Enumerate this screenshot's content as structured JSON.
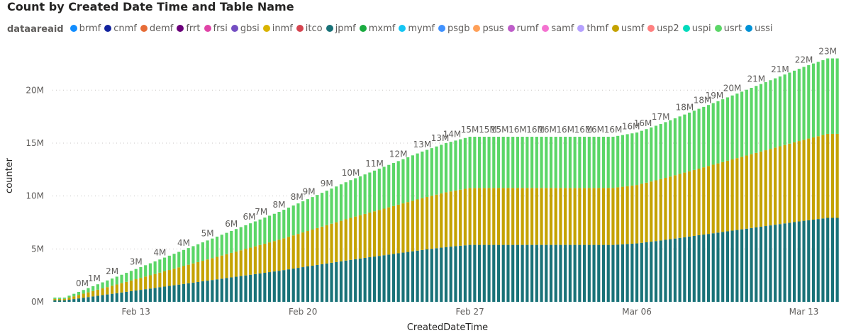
{
  "chart_data": {
    "type": "bar",
    "stacked": true,
    "title": "Count by Created Date Time and Table Name",
    "xlabel": "CreatedDateTime",
    "ylabel": "counter",
    "legend_title": "dataareaid",
    "legend_placement": "top-left",
    "legend": [
      {
        "name": "brmf",
        "color": "#118DFF"
      },
      {
        "name": "cnmf",
        "color": "#12239E"
      },
      {
        "name": "demf",
        "color": "#E66C37"
      },
      {
        "name": "frrt",
        "color": "#6B007B"
      },
      {
        "name": "frsi",
        "color": "#E044A7"
      },
      {
        "name": "gbsi",
        "color": "#744EC2"
      },
      {
        "name": "inmf",
        "color": "#D9B300"
      },
      {
        "name": "itco",
        "color": "#D64550"
      },
      {
        "name": "jpmf",
        "color": "#197278"
      },
      {
        "name": "mxmf",
        "color": "#1AAB40"
      },
      {
        "name": "mymf",
        "color": "#15C6F4"
      },
      {
        "name": "psgb",
        "color": "#4092FF"
      },
      {
        "name": "psus",
        "color": "#FFA058"
      },
      {
        "name": "rumf",
        "color": "#BE5DC9"
      },
      {
        "name": "samf",
        "color": "#F472D0"
      },
      {
        "name": "thmf",
        "color": "#B5A1FF"
      },
      {
        "name": "usmf",
        "color": "#C4A200"
      },
      {
        "name": "usp2",
        "color": "#FF8080"
      },
      {
        "name": "uspi",
        "color": "#00DBBC"
      },
      {
        "name": "usrt",
        "color": "#5BD667"
      },
      {
        "name": "ussi",
        "color": "#0091D5"
      }
    ],
    "x_start": "2022-02-10",
    "x_end": "2022-03-14",
    "ylim": [
      0,
      23500000
    ],
    "y_ticks": [
      {
        "value": 0,
        "label": "0M"
      },
      {
        "value": 5000000,
        "label": "5M"
      },
      {
        "value": 10000000,
        "label": "10M"
      },
      {
        "value": 15000000,
        "label": "15M"
      },
      {
        "value": 20000000,
        "label": "20M"
      }
    ],
    "x_ticks": [
      {
        "date": "2022-02-13",
        "label": "Feb 13"
      },
      {
        "date": "2022-02-20",
        "label": "Feb 20"
      },
      {
        "date": "2022-02-27",
        "label": "Feb 27"
      },
      {
        "date": "2022-03-06",
        "label": "Mar 06"
      },
      {
        "date": "2022-03-13",
        "label": "Mar 13"
      }
    ],
    "grid": "y-dotted",
    "total_anchors": [
      {
        "date": "2022-02-10",
        "value": 400000
      },
      {
        "date": "2022-02-11",
        "value": 1300000
      },
      {
        "date": "2022-02-12",
        "value": 2200000
      },
      {
        "date": "2022-02-13",
        "value": 3100000
      },
      {
        "date": "2022-02-14",
        "value": 4000000
      },
      {
        "date": "2022-02-15",
        "value": 4900000
      },
      {
        "date": "2022-02-16",
        "value": 5800000
      },
      {
        "date": "2022-02-17",
        "value": 6700000
      },
      {
        "date": "2022-02-18",
        "value": 7600000
      },
      {
        "date": "2022-02-19",
        "value": 8500000
      },
      {
        "date": "2022-02-20",
        "value": 9500000
      },
      {
        "date": "2022-02-21",
        "value": 10500000
      },
      {
        "date": "2022-02-22",
        "value": 11500000
      },
      {
        "date": "2022-02-23",
        "value": 12400000
      },
      {
        "date": "2022-02-24",
        "value": 13300000
      },
      {
        "date": "2022-02-25",
        "value": 14200000
      },
      {
        "date": "2022-02-26",
        "value": 15000000
      },
      {
        "date": "2022-02-27",
        "value": 15600000
      },
      {
        "date": "2022-03-05",
        "value": 15600000
      },
      {
        "date": "2022-03-06",
        "value": 16000000
      },
      {
        "date": "2022-03-07",
        "value": 16800000
      },
      {
        "date": "2022-03-08",
        "value": 17700000
      },
      {
        "date": "2022-03-09",
        "value": 18600000
      },
      {
        "date": "2022-03-10",
        "value": 19500000
      },
      {
        "date": "2022-03-11",
        "value": 20400000
      },
      {
        "date": "2022-03-12",
        "value": 21300000
      },
      {
        "date": "2022-03-13",
        "value": 22200000
      },
      {
        "date": "2022-03-14",
        "value": 23000000
      }
    ],
    "series_shares": [
      {
        "name": "jpmf",
        "share": 0.345
      },
      {
        "name": "usmf",
        "share": 0.345
      },
      {
        "name": "usrt",
        "share": 0.31
      }
    ],
    "data_labels": [
      {
        "date": "2022-02-11",
        "label": "0M"
      },
      {
        "date": "2022-02-11",
        "label": "1M"
      },
      {
        "date": "2022-02-12",
        "label": "2M"
      },
      {
        "date": "2022-02-13",
        "label": "3M"
      },
      {
        "date": "2022-02-14",
        "label": "4M"
      },
      {
        "date": "2022-02-15",
        "label": "4M"
      },
      {
        "date": "2022-02-16",
        "label": "5M"
      },
      {
        "date": "2022-02-17",
        "label": "6M"
      },
      {
        "date": "2022-02-18",
        "label": "6M"
      },
      {
        "date": "2022-02-18",
        "label": "7M"
      },
      {
        "date": "2022-02-19",
        "label": "8M"
      },
      {
        "date": "2022-02-20",
        "label": "8M"
      },
      {
        "date": "2022-02-20",
        "label": "9M"
      },
      {
        "date": "2022-02-21",
        "label": "9M"
      },
      {
        "date": "2022-02-22",
        "label": "10M"
      },
      {
        "date": "2022-02-23",
        "label": "11M"
      },
      {
        "date": "2022-02-24",
        "label": "12M"
      },
      {
        "date": "2022-02-25",
        "label": "13M"
      },
      {
        "date": "2022-02-26",
        "label": "13M"
      },
      {
        "date": "2022-02-26",
        "label": "14M"
      },
      {
        "date": "2022-02-27",
        "label": "15M"
      },
      {
        "date": "2022-02-28",
        "label": "15M"
      },
      {
        "date": "2022-02-28",
        "label": "15M"
      },
      {
        "date": "2022-03-01",
        "label": "16M"
      },
      {
        "date": "2022-03-02",
        "label": "16M"
      },
      {
        "date": "2022-03-02",
        "label": "16M"
      },
      {
        "date": "2022-03-03",
        "label": "16M"
      },
      {
        "date": "2022-03-04",
        "label": "16M"
      },
      {
        "date": "2022-03-04",
        "label": "16M"
      },
      {
        "date": "2022-03-05",
        "label": "16M"
      },
      {
        "date": "2022-03-06",
        "label": "16M"
      },
      {
        "date": "2022-03-06",
        "label": "16M"
      },
      {
        "date": "2022-03-07",
        "label": "17M"
      },
      {
        "date": "2022-03-08",
        "label": "18M"
      },
      {
        "date": "2022-03-09",
        "label": "18M"
      },
      {
        "date": "2022-03-09",
        "label": "19M"
      },
      {
        "date": "2022-03-10",
        "label": "20M"
      },
      {
        "date": "2022-03-11",
        "label": "21M"
      },
      {
        "date": "2022-03-12",
        "label": "21M"
      },
      {
        "date": "2022-03-13",
        "label": "22M"
      },
      {
        "date": "2022-03-14",
        "label": "23M"
      }
    ]
  }
}
